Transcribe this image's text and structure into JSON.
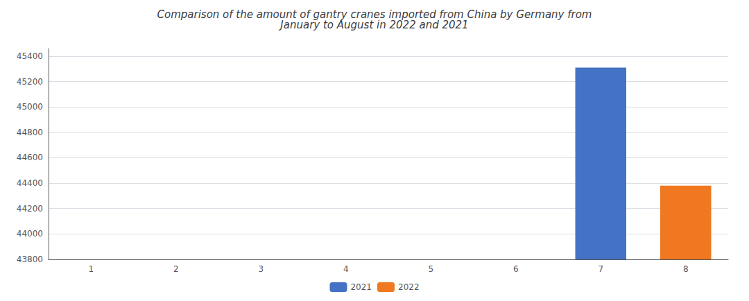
{
  "chart_data": {
    "type": "bar",
    "title": "Comparison of the amount of gantry cranes imported from China by Germany from\nJanuary to August in 2022 and 2021",
    "categories": [
      1,
      2,
      3,
      4,
      5,
      6,
      7,
      8
    ],
    "series": [
      {
        "name": "2021",
        "color": "#4472c4",
        "values": [
          null,
          null,
          null,
          null,
          null,
          null,
          45310,
          null
        ]
      },
      {
        "name": "2022",
        "color": "#f07820",
        "values": [
          null,
          null,
          null,
          null,
          null,
          null,
          null,
          44380
        ]
      }
    ],
    "ylim": [
      43800,
      45460
    ],
    "yticks": [
      43800,
      44000,
      44200,
      44400,
      44600,
      44800,
      45000,
      45200,
      45400
    ],
    "grid": true,
    "legend": "bottom"
  }
}
